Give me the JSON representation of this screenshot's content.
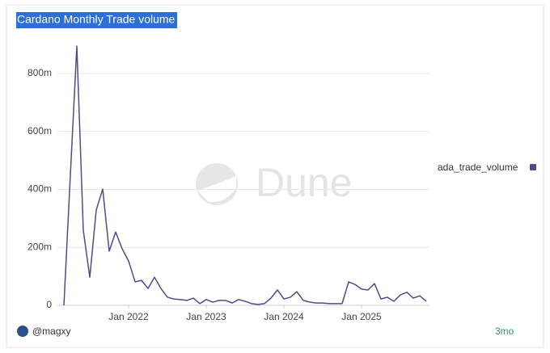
{
  "chart_data": {
    "type": "line",
    "title": "Cardano Monthly Trade volume",
    "watermark": "Dune",
    "author": "@magxy",
    "refresh": "3mo",
    "x": [
      "2021-03",
      "2021-04",
      "2021-05",
      "2021-06",
      "2021-07",
      "2021-08",
      "2021-09",
      "2021-10",
      "2021-11",
      "2021-12",
      "2022-01",
      "2022-02",
      "2022-03",
      "2022-04",
      "2022-05",
      "2022-06",
      "2022-07",
      "2022-08",
      "2022-09",
      "2022-10",
      "2022-11",
      "2022-12",
      "2023-01",
      "2023-02",
      "2023-03",
      "2023-04",
      "2023-05",
      "2023-06",
      "2023-07",
      "2023-08",
      "2023-09",
      "2023-10",
      "2023-11",
      "2023-12",
      "2024-01",
      "2024-02",
      "2024-03",
      "2024-04",
      "2024-05",
      "2024-06",
      "2024-07",
      "2024-08",
      "2024-09",
      "2024-10",
      "2024-11",
      "2024-12",
      "2025-01",
      "2025-02",
      "2025-03",
      "2025-04",
      "2025-05",
      "2025-06",
      "2025-07",
      "2025-08",
      "2025-09",
      "2025-10",
      "2025-11"
    ],
    "series": [
      {
        "name": "ada_trade_volume",
        "color": "#4e4a8c",
        "values": [
          0,
          450,
          894,
          259,
          97,
          329,
          401,
          187,
          253,
          195,
          153,
          81,
          86,
          58,
          97,
          58,
          28,
          22,
          20,
          17,
          25,
          6,
          20,
          11,
          17,
          17,
          8,
          20,
          14,
          6,
          3,
          6,
          25,
          53,
          22,
          28,
          47,
          17,
          11,
          8,
          8,
          6,
          6,
          6,
          81,
          72,
          56,
          53,
          75,
          22,
          28,
          14,
          36,
          45,
          25,
          33,
          14
        ]
      }
    ],
    "xlim": [
      "2021-02",
      "2025-12"
    ],
    "xticks": [
      {
        "value": "2022-01",
        "label": "Jan 2022"
      },
      {
        "value": "2023-01",
        "label": "Jan 2023"
      },
      {
        "value": "2024-01",
        "label": "Jan 2024"
      },
      {
        "value": "2025-01",
        "label": "Jan 2025"
      }
    ],
    "ylim": [
      0,
      900
    ],
    "yticks": [
      0,
      {
        "value": 200,
        "label": "200m"
      },
      {
        "value": 400,
        "label": "400m"
      },
      {
        "value": 600,
        "label": "600m"
      },
      {
        "value": 800,
        "label": "800m"
      }
    ],
    "grid": true
  }
}
